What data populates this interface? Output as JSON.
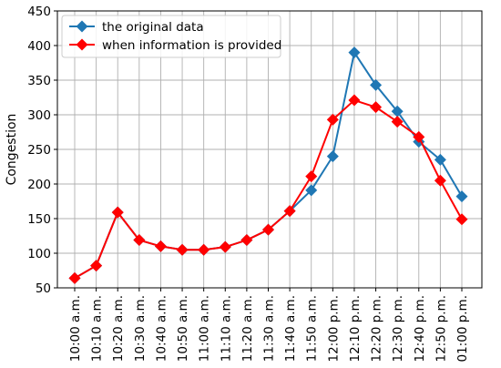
{
  "chart_data": {
    "type": "line",
    "ylabel": "Congestion",
    "ylim": [
      50,
      450
    ],
    "yticks": [
      50,
      100,
      150,
      200,
      250,
      300,
      350,
      400,
      450
    ],
    "grid": true,
    "legend_position": "top-left",
    "categories": [
      "10:00 a.m.",
      "10:10 a.m.",
      "10:20 a.m.",
      "10:30 a.m.",
      "10:40 a.m.",
      "10:50 a.m.",
      "11:00 a.m.",
      "11:10 a.m.",
      "11:20 a.m.",
      "11:30 a.m.",
      "11:40 a.m.",
      "11:50 a.m.",
      "12:00 p.m.",
      "12:10 p.m.",
      "12:20 p.m.",
      "12:30 p.m.",
      "12:40 p.m.",
      "12:50 p.m.",
      "01:00 p.m."
    ],
    "series": [
      {
        "name": "the original data",
        "color": "#1f77b4",
        "values": [
          64,
          82,
          159,
          119,
          110,
          105,
          105,
          109,
          119,
          134,
          161,
          191,
          240,
          390,
          343,
          305,
          261,
          235,
          182
        ]
      },
      {
        "name": "when information is provided",
        "color": "#ff0000",
        "values": [
          64,
          82,
          159,
          119,
          110,
          105,
          105,
          109,
          119,
          134,
          161,
          211,
          293,
          321,
          311,
          290,
          268,
          205,
          149
        ]
      }
    ]
  }
}
